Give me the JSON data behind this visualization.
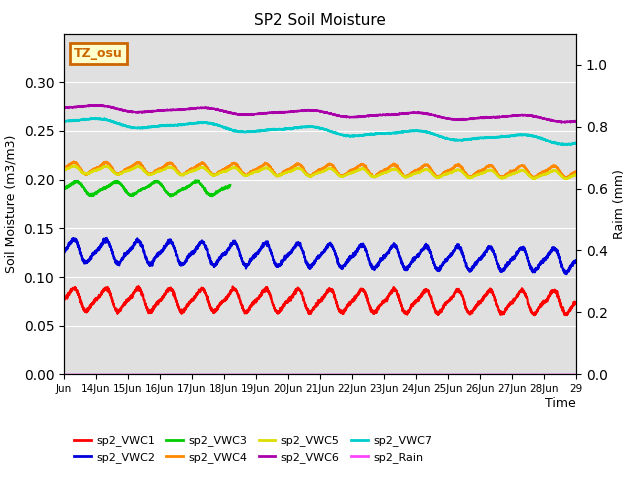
{
  "title": "SP2 Soil Moisture",
  "ylabel_left": "Soil Moisture (m3/m3)",
  "ylabel_right": "Raim (mm)",
  "xlabel": "Time",
  "x_labels": [
    "Jun",
    "14Jun",
    "15Jun",
    "16Jun",
    "17Jun",
    "18Jun",
    "19Jun",
    "20Jun",
    "21Jun",
    "22Jun",
    "23Jun",
    "24Jun",
    "25Jun",
    "26Jun",
    "27Jun",
    "28Jun",
    "29"
  ],
  "ylim_left": [
    0.0,
    0.35
  ],
  "ylim_right": [
    0.0,
    1.1
  ],
  "yticks_left": [
    0.0,
    0.05,
    0.1,
    0.15,
    0.2,
    0.25,
    0.3
  ],
  "yticks_right": [
    0.0,
    0.2,
    0.4,
    0.6,
    0.8,
    1.0
  ],
  "background_color": "#e0e0e0",
  "annotation_text": "TZ_osu",
  "annotation_color": "#cc6600",
  "annotation_bg": "#ffffcc",
  "series_order": [
    "sp2_VWC1",
    "sp2_VWC2",
    "sp2_VWC3",
    "sp2_VWC4",
    "sp2_VWC5",
    "sp2_VWC6",
    "sp2_VWC7",
    "sp2_Rain"
  ],
  "series": {
    "sp2_VWC1": {
      "color": "#ff0000",
      "base": 0.077,
      "amplitude": 0.012,
      "trend": -0.003,
      "freq": 1.0,
      "linewidth": 1.5
    },
    "sp2_VWC2": {
      "color": "#0000dd",
      "base": 0.127,
      "amplitude": 0.012,
      "trend": -0.01,
      "freq": 1.0,
      "linewidth": 1.5
    },
    "sp2_VWC3": {
      "color": "#00cc00",
      "base": 0.191,
      "amplitude": 0.007,
      "trend": 0.0,
      "freq": 0.8,
      "linewidth": 1.5,
      "stop_day": 5.2
    },
    "sp2_VWC4": {
      "color": "#ff8800",
      "base": 0.212,
      "amplitude": 0.006,
      "trend": -0.004,
      "freq": 1.0,
      "linewidth": 1.5
    },
    "sp2_VWC5": {
      "color": "#dddd00",
      "base": 0.21,
      "amplitude": 0.004,
      "trend": -0.005,
      "freq": 1.0,
      "linewidth": 1.5
    },
    "sp2_VWC6": {
      "color": "#aa00aa",
      "base": 0.274,
      "amplitude": 0.003,
      "trend": -0.012,
      "freq": 0.3,
      "linewidth": 1.5
    },
    "sp2_VWC7": {
      "color": "#00cccc",
      "base": 0.26,
      "amplitude": 0.004,
      "trend": -0.02,
      "freq": 0.3,
      "linewidth": 1.5
    },
    "sp2_Rain": {
      "color": "#ff44ff",
      "base": 0.0,
      "amplitude": 0.0,
      "trend": 0.0,
      "freq": 0.0,
      "linewidth": 1.0
    }
  },
  "legend_entries": [
    {
      "label": "sp2_VWC1",
      "color": "#ff0000"
    },
    {
      "label": "sp2_VWC2",
      "color": "#0000dd"
    },
    {
      "label": "sp2_VWC3",
      "color": "#00cc00"
    },
    {
      "label": "sp2_VWC4",
      "color": "#ff8800"
    },
    {
      "label": "sp2_VWC5",
      "color": "#dddd00"
    },
    {
      "label": "sp2_VWC6",
      "color": "#aa00aa"
    },
    {
      "label": "sp2_VWC7",
      "color": "#00cccc"
    },
    {
      "label": "sp2_Rain",
      "color": "#ff44ff"
    }
  ]
}
